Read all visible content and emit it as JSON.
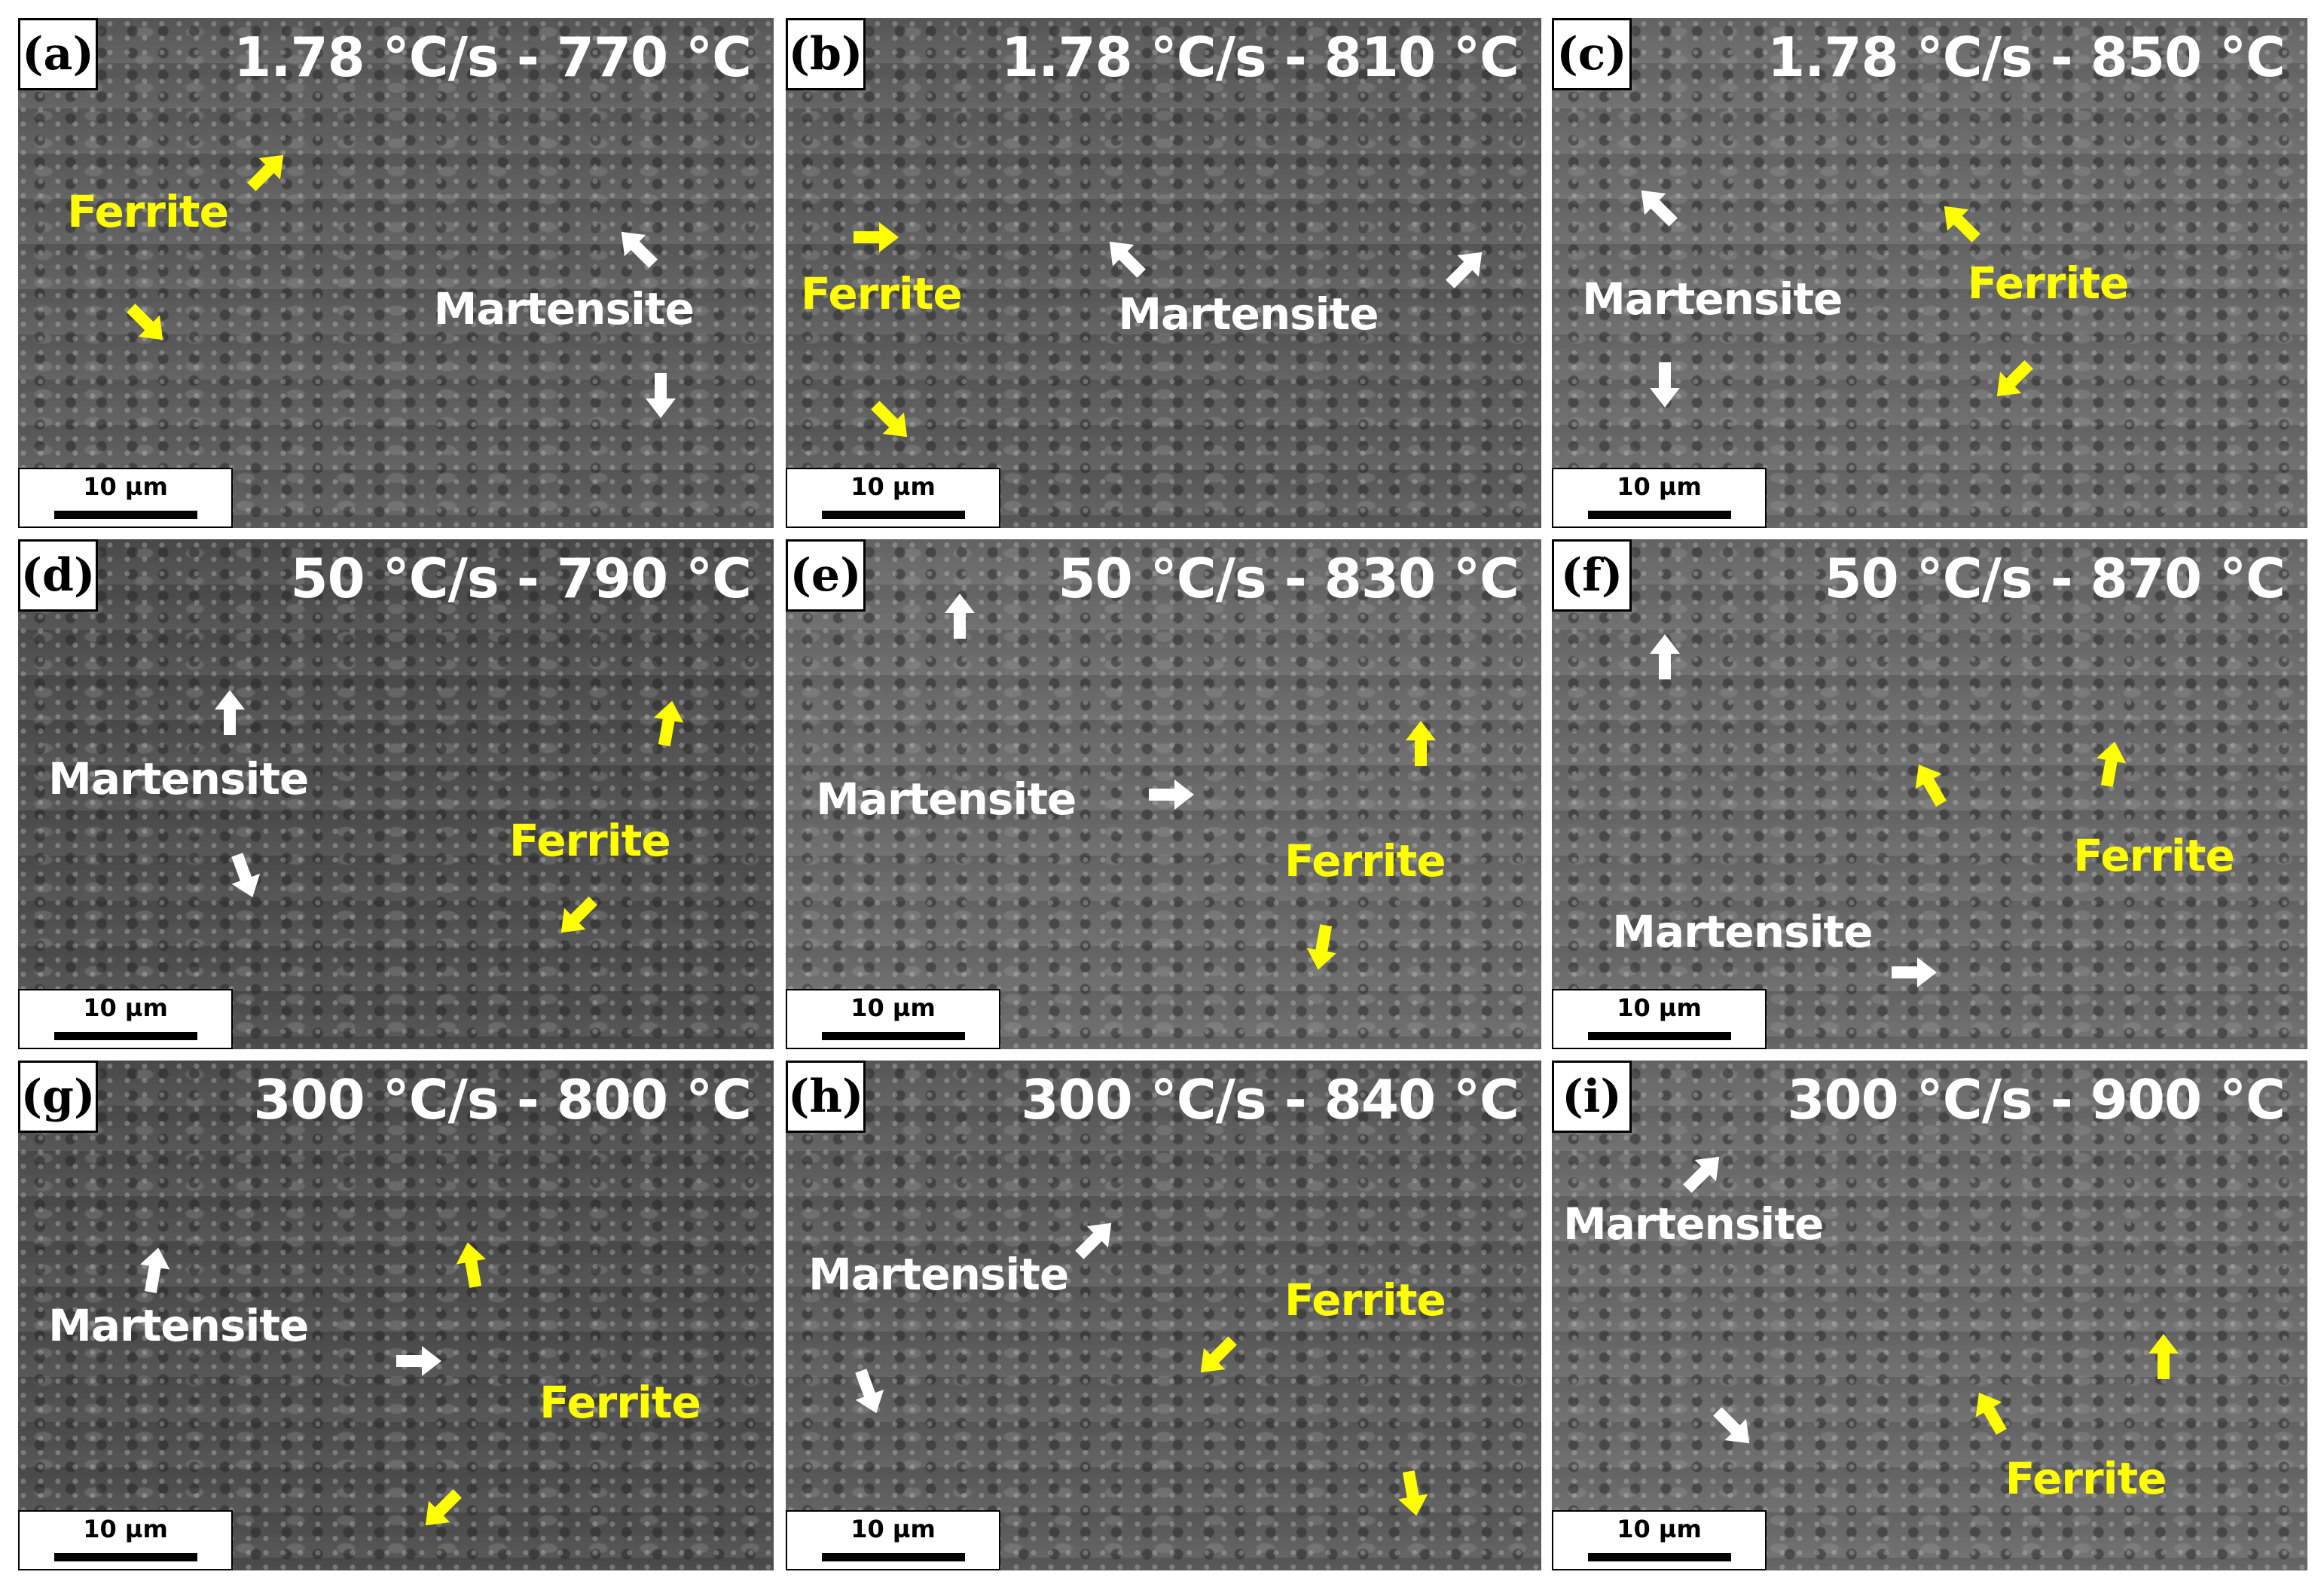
{
  "colors": {
    "martensite": "#ffffff",
    "ferrite": "#ffff00"
  },
  "scale_bar": "10 µm",
  "panels": [
    {
      "label": "(a)",
      "title": "1.78 °C/s - 770 °C",
      "martensite": "Martensite",
      "ferrite": "Ferrite"
    },
    {
      "label": "(b)",
      "title": "1.78 °C/s - 810 °C",
      "martensite": "Martensite",
      "ferrite": "Ferrite"
    },
    {
      "label": "(c)",
      "title": "1.78 °C/s - 850 °C",
      "martensite": "Martensite",
      "ferrite": "Ferrite"
    },
    {
      "label": "(d)",
      "title": "50 °C/s - 790 °C",
      "martensite": "Martensite",
      "ferrite": "Ferrite"
    },
    {
      "label": "(e)",
      "title": "50 °C/s - 830 °C",
      "martensite": "Martensite",
      "ferrite": "Ferrite"
    },
    {
      "label": "(f)",
      "title": "50 °C/s - 870 °C",
      "martensite": "Martensite",
      "ferrite": "Ferrite"
    },
    {
      "label": "(g)",
      "title": "300 °C/s - 800 °C",
      "martensite": "Martensite",
      "ferrite": "Ferrite"
    },
    {
      "label": "(h)",
      "title": "300 °C/s - 840 °C",
      "martensite": "Martensite",
      "ferrite": "Ferrite"
    },
    {
      "label": "(i)",
      "title": "300 °C/s - 900 °C",
      "martensite": "Martensite",
      "ferrite": "Ferrite"
    }
  ]
}
